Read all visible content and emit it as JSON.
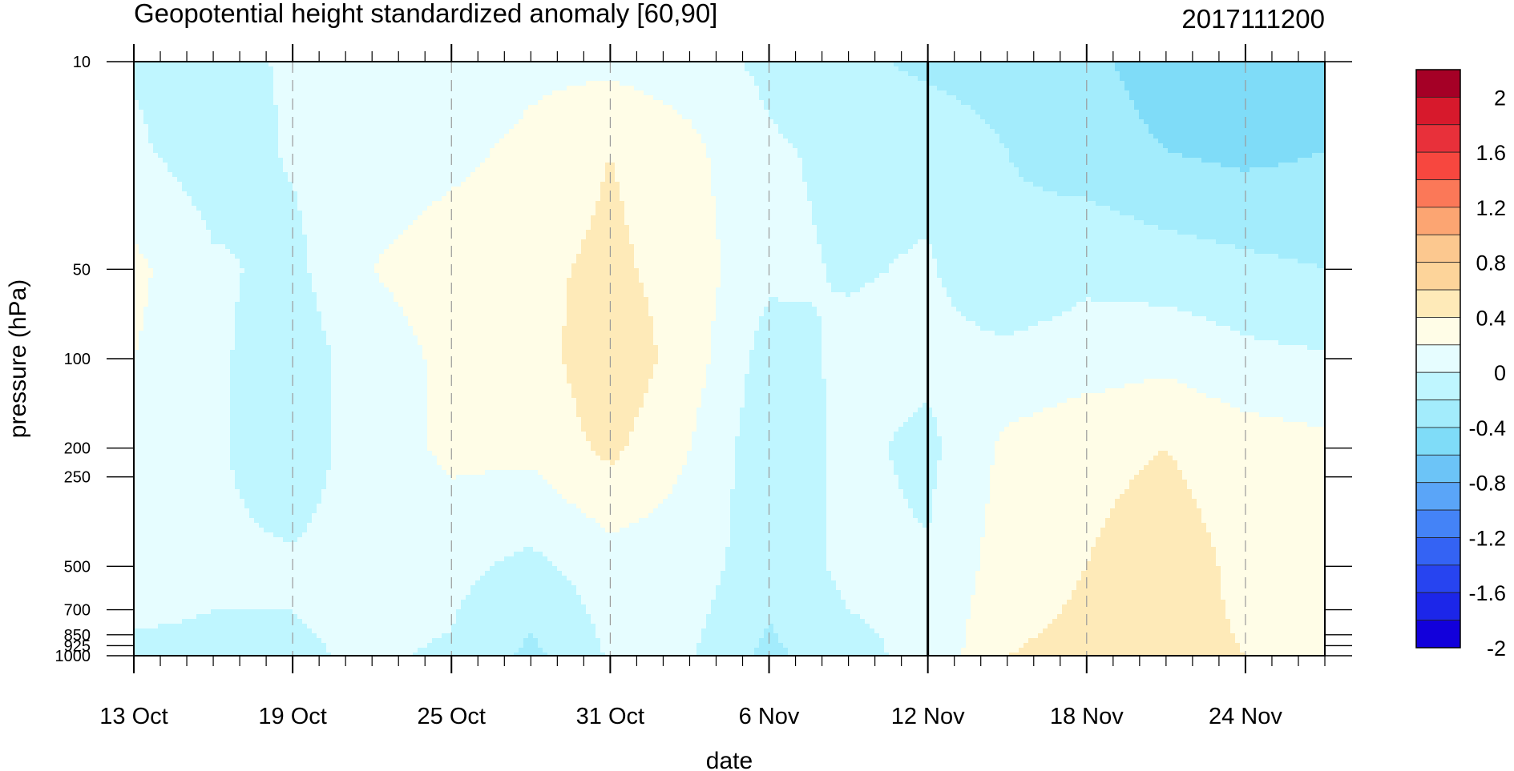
{
  "chart_data": {
    "type": "heatmap",
    "title": "Geopotential height standardized anomaly [60,90]",
    "subtitle": "2017111200",
    "xlabel": "date",
    "ylabel": "pressure (hPa)",
    "x_ticks": [
      "13 Oct",
      "19 Oct",
      "25 Oct",
      "31 Oct",
      "6 Nov",
      "12 Nov",
      "18 Nov",
      "24 Nov"
    ],
    "x_tick_days": [
      0,
      6,
      12,
      18,
      24,
      30,
      36,
      42
    ],
    "x_range_days": [
      0,
      45
    ],
    "y_ticks": [
      "10",
      "50",
      "100",
      "200",
      "250",
      "500",
      "700",
      "850",
      "925",
      "1000"
    ],
    "y_tick_values": [
      10,
      50,
      100,
      200,
      250,
      500,
      700,
      850,
      925,
      1000
    ],
    "y_scale": "log",
    "y_range": [
      1000,
      10
    ],
    "marked_date": "12 Nov",
    "colorbar": {
      "labels": [
        "2",
        "1.6",
        "1.2",
        "0.8",
        "0.4",
        "0",
        "-0.4",
        "-0.8",
        "-1.2",
        "-1.6",
        "-2"
      ],
      "levels": [
        2,
        1.8,
        1.6,
        1.4,
        1.2,
        1.0,
        0.8,
        0.6,
        0.4,
        0.2,
        0,
        -0.2,
        -0.4,
        -0.6,
        -0.8,
        -1.0,
        -1.2,
        -1.4,
        -1.6,
        -1.8,
        -2
      ],
      "colors": [
        "#a50026",
        "#d7192c",
        "#e8303a",
        "#f7473f",
        "#fb7858",
        "#fca572",
        "#fcc88f",
        "#fdd49a",
        "#feeab8",
        "#fffde7",
        "#e6fdff",
        "#bff6ff",
        "#a3ecfc",
        "#7fdcf8",
        "#6cc4f7",
        "#5aa5f8",
        "#4483f7",
        "#3463f4",
        "#2744f0",
        "#1c26e9",
        "#1200db"
      ]
    },
    "field": {
      "days": [
        0,
        3,
        6,
        9,
        12,
        15,
        18,
        21,
        24,
        27,
        30,
        33,
        36,
        39,
        42,
        45
      ],
      "levels_hPa": [
        10,
        20,
        50,
        100,
        200,
        500,
        1000
      ],
      "values": [
        [
          -0.02,
          -0.05,
          0.02,
          0.05,
          0.05,
          0.15,
          0.15,
          0.1,
          -0.05,
          -0.15,
          -0.25,
          -0.3,
          -0.35,
          -0.5,
          -0.55,
          -0.55
        ],
        [
          0.03,
          -0.1,
          0.02,
          0.1,
          0.15,
          0.25,
          0.4,
          0.25,
          0.03,
          -0.05,
          -0.05,
          -0.2,
          -0.3,
          -0.4,
          -0.45,
          -0.4
        ],
        [
          0.25,
          0.03,
          -0.05,
          0.2,
          0.3,
          0.35,
          0.45,
          0.3,
          0.05,
          -0.02,
          0.02,
          -0.15,
          -0.05,
          -0.1,
          -0.15,
          -0.2
        ],
        [
          0.2,
          0.03,
          -0.1,
          0.1,
          0.25,
          0.3,
          0.55,
          0.3,
          -0.1,
          0.05,
          0.05,
          0.05,
          0.1,
          0.15,
          0.05,
          0.02
        ],
        [
          0.1,
          0.02,
          -0.08,
          0.08,
          0.25,
          0.25,
          0.45,
          0.2,
          -0.15,
          0.05,
          -0.05,
          0.25,
          0.35,
          0.4,
          0.3,
          0.25
        ],
        [
          0.05,
          0.02,
          0.02,
          0.05,
          0.05,
          -0.05,
          0.1,
          0.1,
          -0.12,
          0.05,
          0.02,
          0.3,
          0.4,
          0.5,
          0.35,
          0.3
        ],
        [
          -0.02,
          -0.02,
          -0.02,
          0.02,
          -0.02,
          -0.25,
          0.02,
          0.02,
          -0.25,
          -0.05,
          0.05,
          0.4,
          0.45,
          0.45,
          0.4,
          0.4
        ]
      ]
    }
  }
}
